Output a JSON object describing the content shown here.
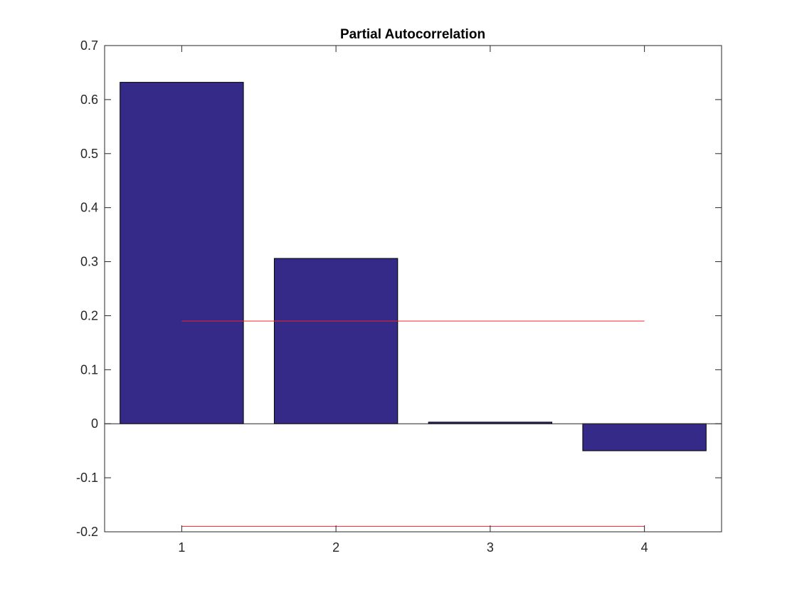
{
  "chart_data": {
    "type": "bar",
    "title": "Partial Autocorrelation",
    "xlabel": "",
    "ylabel": "",
    "categories": [
      "1",
      "2",
      "3",
      "4"
    ],
    "values": [
      0.632,
      0.306,
      0.003,
      -0.05
    ],
    "ylim": [
      -0.2,
      0.7
    ],
    "yticks": [
      "-0.2",
      "-0.1",
      "0",
      "0.1",
      "0.2",
      "0.3",
      "0.4",
      "0.5",
      "0.6",
      "0.7"
    ],
    "confidence_bounds": [
      0.19,
      -0.19
    ],
    "bar_color": "#352a87",
    "bound_color": "#e8292f",
    "grid": false
  }
}
